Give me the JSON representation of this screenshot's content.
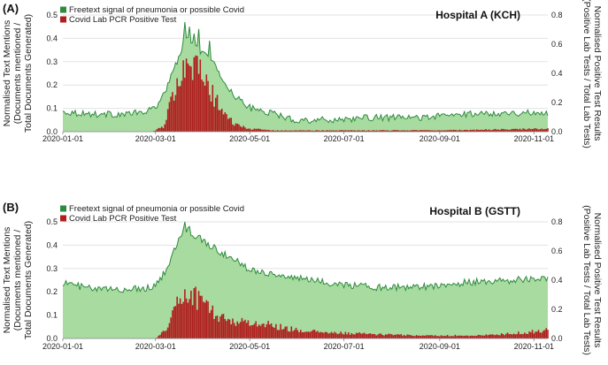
{
  "chart_data": [
    {
      "type": "area",
      "panel_label": "(A)",
      "title": "Hospital A (KCH)",
      "x": {
        "start": "2020-01-01",
        "end": "2020-11-10"
      },
      "xticks": [
        "2020-01-01",
        "2020-03-01",
        "2020-05-01",
        "2020-07-01",
        "2020-09-01",
        "2020-11-01"
      ],
      "ylabel_left": [
        "Normalised Text Mentions",
        "(Documents mentioned /",
        "Total Documents Generated)"
      ],
      "ylabel_right": [
        "Normalised Positive Test Results",
        "(Positive Lab Tests / Total Lab Tests)"
      ],
      "ylim_left": [
        0,
        0.5
      ],
      "ylim_right": [
        0,
        0.8
      ],
      "yticks_left": [
        "0.0",
        "0.1",
        "0.2",
        "0.3",
        "0.4",
        "0.5"
      ],
      "yticks_right": [
        "0.0",
        "0.2",
        "0.4",
        "0.6",
        "0.8"
      ],
      "series": [
        {
          "name": "Freetext signal of pneumonia or possible Covid",
          "axis": "left",
          "style": "area",
          "color": "#2e8b3e",
          "fill": "#a8dba0",
          "profile": [
            [
              0,
              0.085
            ],
            [
              10,
              0.08
            ],
            [
              20,
              0.075
            ],
            [
              40,
              0.075
            ],
            [
              55,
              0.085
            ],
            [
              62,
              0.12
            ],
            [
              68,
              0.2
            ],
            [
              74,
              0.3
            ],
            [
              78,
              0.38
            ],
            [
              82,
              0.4
            ],
            [
              88,
              0.35
            ],
            [
              95,
              0.32
            ],
            [
              101,
              0.25
            ],
            [
              108,
              0.18
            ],
            [
              115,
              0.13
            ],
            [
              122,
              0.1
            ],
            [
              135,
              0.08
            ],
            [
              150,
              0.05
            ],
            [
              170,
              0.05
            ],
            [
              200,
              0.06
            ],
            [
              230,
              0.06
            ],
            [
              260,
              0.075
            ],
            [
              280,
              0.08
            ],
            [
              314,
              0.08
            ]
          ],
          "noise": 0.014,
          "peaks": [
            [
              79,
              0.47
            ],
            [
              82,
              0.45
            ],
            [
              85,
              0.42
            ],
            [
              88,
              0.44
            ],
            [
              95,
              0.39
            ]
          ]
        },
        {
          "name": "Covid Lab PCR Positive Test",
          "axis": "right",
          "style": "bar",
          "color": "#b01e1e",
          "profile": [
            [
              0,
              0
            ],
            [
              58,
              0
            ],
            [
              66,
              0.04
            ],
            [
              70,
              0.2
            ],
            [
              75,
              0.42
            ],
            [
              80,
              0.5
            ],
            [
              86,
              0.45
            ],
            [
              93,
              0.32
            ],
            [
              101,
              0.18
            ],
            [
              110,
              0.06
            ],
            [
              120,
              0.02
            ],
            [
              140,
              0.008
            ],
            [
              250,
              0.01
            ],
            [
              300,
              0.018
            ],
            [
              314,
              0.02
            ]
          ],
          "noise": 0.3
        }
      ]
    },
    {
      "type": "area",
      "panel_label": "(B)",
      "title": "Hospital B (GSTT)",
      "x": {
        "start": "2020-01-01",
        "end": "2020-11-10"
      },
      "xticks": [
        "2020-01-01",
        "2020-03-01",
        "2020-05-01",
        "2020-07-01",
        "2020-09-01",
        "2020-11-01"
      ],
      "ylabel_left": [
        "Normalised Text Mentions",
        "(Documents mentioned /",
        "Total Documents Generated)"
      ],
      "ylabel_right": [
        "Normalised Positive Test Results",
        "(Positive Lab Tests / Total Lab Tests)"
      ],
      "ylim_left": [
        0,
        0.5
      ],
      "ylim_right": [
        0,
        0.8
      ],
      "yticks_left": [
        "0.0",
        "0.1",
        "0.2",
        "0.3",
        "0.4",
        "0.5"
      ],
      "yticks_right": [
        "0.0",
        "0.2",
        "0.4",
        "0.6",
        "0.8"
      ],
      "series": [
        {
          "name": "Freetext signal of pneumonia or possible Covid",
          "axis": "left",
          "style": "area",
          "color": "#2e8b3e",
          "fill": "#a8dba0",
          "profile": [
            [
              0,
              0.24
            ],
            [
              20,
              0.21
            ],
            [
              40,
              0.21
            ],
            [
              58,
              0.22
            ],
            [
              64,
              0.26
            ],
            [
              70,
              0.34
            ],
            [
              76,
              0.44
            ],
            [
              80,
              0.47
            ],
            [
              86,
              0.44
            ],
            [
              95,
              0.4
            ],
            [
              105,
              0.36
            ],
            [
              120,
              0.3
            ],
            [
              140,
              0.27
            ],
            [
              170,
              0.24
            ],
            [
              200,
              0.22
            ],
            [
              230,
              0.22
            ],
            [
              260,
              0.24
            ],
            [
              290,
              0.25
            ],
            [
              314,
              0.26
            ]
          ],
          "noise": 0.015,
          "peaks": [
            [
              79,
              0.5
            ],
            [
              82,
              0.48
            ]
          ]
        },
        {
          "name": "Covid Lab PCR Positive Test",
          "axis": "right",
          "style": "bar",
          "color": "#b01e1e",
          "profile": [
            [
              0,
              0
            ],
            [
              60,
              0
            ],
            [
              66,
              0.05
            ],
            [
              72,
              0.2
            ],
            [
              78,
              0.3
            ],
            [
              84,
              0.3
            ],
            [
              92,
              0.24
            ],
            [
              100,
              0.15
            ],
            [
              110,
              0.12
            ],
            [
              130,
              0.1
            ],
            [
              150,
              0.06
            ],
            [
              170,
              0.04
            ],
            [
              200,
              0.03
            ],
            [
              230,
              0.02
            ],
            [
              270,
              0.02
            ],
            [
              300,
              0.04
            ],
            [
              314,
              0.06
            ]
          ],
          "noise": 0.3
        }
      ]
    }
  ]
}
